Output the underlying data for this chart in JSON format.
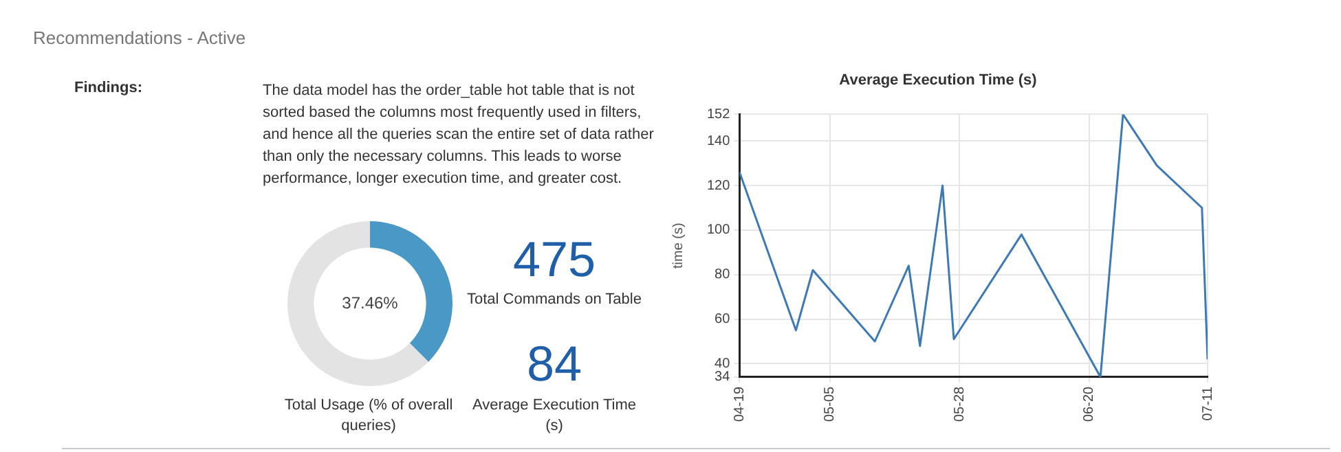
{
  "chart_data": [
    {
      "type": "other",
      "title": "Recommendations - Active",
      "annotations": [
        "Findings:",
        "The data model has the order_table hot table that is not sorted based the columns most frequently used in filters, and hence all the queries scan the entire set of data rather than only the necessary columns. This leads to worse performance, longer execution time, and greater cost.",
        "475",
        "Total Commands on Table",
        "84",
        "Average Execution Time (s)"
      ]
    },
    {
      "type": "donut",
      "title": "Total Usage (% of overall queries)",
      "categories": [
        null,
        null
      ],
      "values": [
        37.46,
        62.54
      ],
      "colors": [
        "#4a98c6",
        "#e3e3e3"
      ],
      "value_labels": [
        "37.46%",
        null
      ]
    },
    {
      "type": "line",
      "title": "Average Execution Time (s)",
      "ylabel": "time (s)",
      "x": [
        "--04-19",
        "--04-29",
        "--05-02",
        "--05-13",
        "--05-19",
        "--05-21",
        "--05-25",
        "--05-27",
        "--06-08",
        "--06-22",
        "--06-26",
        "--07-02",
        "--07-10",
        "--07-11"
      ],
      "series": [
        {
          "color": "#3d7ab5",
          "values": [
            126,
            55,
            82,
            50,
            84,
            48,
            120,
            51,
            98,
            34,
            152,
            129,
            110,
            42
          ]
        }
      ],
      "xlim": [
        "--04-19",
        "--07-11"
      ],
      "xticks": [
        {
          "value": "--04-19",
          "label": "04-19"
        },
        {
          "value": "--05-05",
          "label": "05-05"
        },
        {
          "value": "--05-28",
          "label": "05-28"
        },
        {
          "value": "--06-20",
          "label": "06-20"
        },
        {
          "value": "--07-11",
          "label": "07-11"
        }
      ],
      "ylim": [
        34,
        152
      ],
      "yticks": [
        34,
        40,
        60,
        80,
        100,
        120,
        140,
        152
      ],
      "grid": true,
      "legend": false,
      "marker": "none",
      "line_style": "solid"
    }
  ]
}
